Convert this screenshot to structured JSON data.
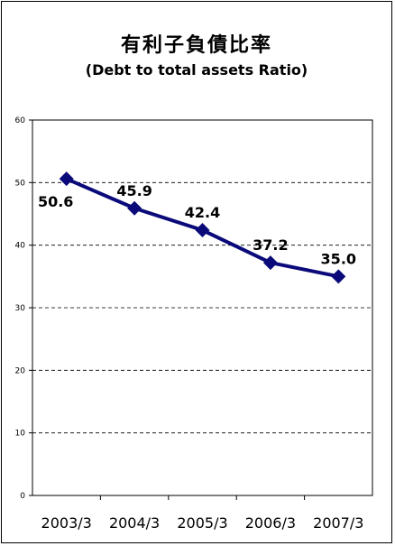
{
  "title": "有利子負債比率",
  "subtitle": "(Debt to total assets Ratio)",
  "chart_data": {
    "type": "line",
    "title": "有利子負債比率",
    "subtitle": "(Debt to total assets Ratio)",
    "categories": [
      "2003/3",
      "2004/3",
      "2005/3",
      "2006/3",
      "2007/3"
    ],
    "series": [
      {
        "values": [
          50.6,
          45.9,
          42.4,
          37.2,
          35.0
        ],
        "labels": [
          "50.6",
          "45.9",
          "42.4",
          "37.2",
          "35.0"
        ],
        "color": "#0a0a7a",
        "marker": "diamond"
      }
    ],
    "ylim": [
      0,
      60
    ],
    "yticks": [
      0,
      10,
      20,
      30,
      40,
      50,
      60
    ],
    "xlabel": "",
    "ylabel": "",
    "grid": "dashed horizontal",
    "legend": "none"
  }
}
